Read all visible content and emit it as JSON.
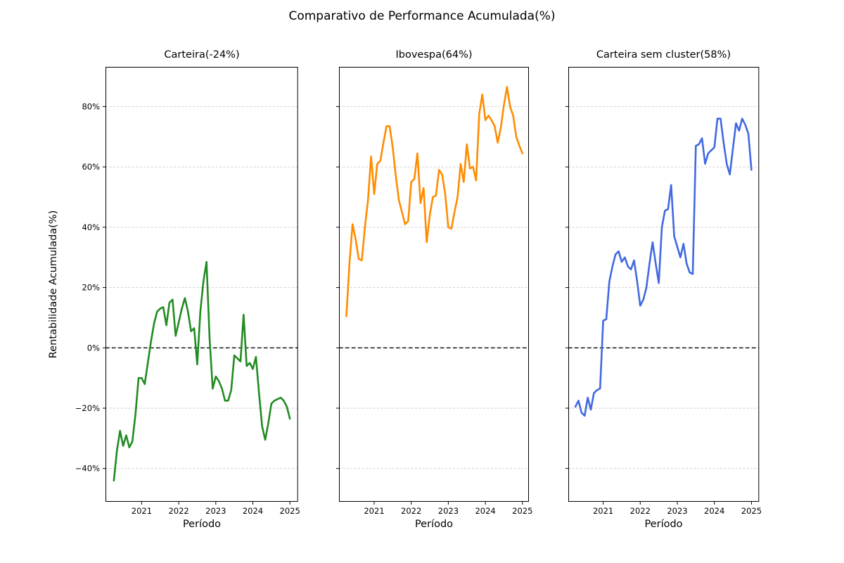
{
  "chart_data": {
    "type": "line",
    "suptitle": "Comparativo de Performance Acumulada(%)",
    "xlabel": "Período",
    "ylabel": "Rentabilidade Acumulada(%)",
    "grid": "horizontal-dashed",
    "zero_line": "black-dashed",
    "legend_position": "none",
    "ylim": [
      -51,
      93
    ],
    "x_tick_labels": [
      "2021",
      "2022",
      "2023",
      "2024",
      "2025"
    ],
    "y_tick_values": [
      -40,
      -20,
      0,
      20,
      40,
      60,
      80
    ],
    "y_tick_labels": [
      "−40%",
      "−20%",
      "0%",
      "20%",
      "40%",
      "60%",
      "80%"
    ],
    "x": [
      "2020-04",
      "2020-05",
      "2020-06",
      "2020-07",
      "2020-08",
      "2020-09",
      "2020-10",
      "2020-11",
      "2020-12",
      "2021-01",
      "2021-02",
      "2021-03",
      "2021-04",
      "2021-05",
      "2021-06",
      "2021-07",
      "2021-08",
      "2021-09",
      "2021-10",
      "2021-11",
      "2021-12",
      "2022-01",
      "2022-02",
      "2022-03",
      "2022-04",
      "2022-05",
      "2022-06",
      "2022-07",
      "2022-08",
      "2022-09",
      "2022-10",
      "2022-11",
      "2022-12",
      "2023-01",
      "2023-02",
      "2023-03",
      "2023-04",
      "2023-05",
      "2023-06",
      "2023-07",
      "2023-08",
      "2023-09",
      "2023-10",
      "2023-11",
      "2023-12",
      "2024-01",
      "2024-02",
      "2024-03",
      "2024-04",
      "2024-05",
      "2024-06",
      "2024-07",
      "2024-08",
      "2024-09",
      "2024-10",
      "2024-11",
      "2024-12",
      "2025-01"
    ],
    "subplots": [
      {
        "title": "Carteira(-24%)",
        "series_name": "Carteira",
        "final_value_pct": -24,
        "color": "#228B22",
        "values": [
          -44,
          -34,
          -27.5,
          -32.5,
          -29,
          -33,
          -31,
          -22,
          -10,
          -10,
          -12,
          -5,
          2,
          8,
          12,
          13,
          13.5,
          7.5,
          15,
          16,
          4,
          8.5,
          13,
          16.5,
          12,
          5.5,
          6.5,
          -5.5,
          12,
          22,
          28.5,
          3,
          -13.5,
          -9.5,
          -11,
          -13.5,
          -17.5,
          -17.5,
          -14,
          -2.5,
          -3.5,
          -4.5,
          11,
          -6,
          -5,
          -7,
          -3,
          -15,
          -26,
          -30.5,
          -25,
          -18.5,
          -17.5,
          -17,
          -16.5,
          -17.5,
          -19.5,
          -23.5
        ]
      },
      {
        "title": "Ibovespa(64%)",
        "series_name": "Ibovespa",
        "final_value_pct": 64,
        "color": "#FF8C00",
        "values": [
          10.5,
          28,
          41,
          36,
          29.5,
          29,
          40,
          49,
          63.5,
          51,
          61,
          62,
          68,
          73.5,
          73.5,
          66.5,
          57,
          49,
          45,
          41,
          42,
          55,
          56,
          64.5,
          48,
          53,
          35,
          44,
          50,
          50.5,
          59,
          57.5,
          51,
          40,
          39.5,
          45,
          50,
          61,
          55,
          67.5,
          59.5,
          60,
          55.5,
          77.5,
          84,
          75.5,
          77,
          75.5,
          73.5,
          68,
          73,
          80.5,
          86.5,
          80,
          77,
          70,
          67,
          64.5
        ]
      },
      {
        "title": "Carteira sem cluster(58%)",
        "series_name": "Carteira sem cluster",
        "final_value_pct": 58,
        "color": "#4169E1",
        "values": [
          -19.5,
          -17.5,
          -21.5,
          -22.5,
          -16.5,
          -20.5,
          -15,
          -14,
          -13.5,
          9,
          9.5,
          22,
          27,
          31,
          32,
          28.5,
          30,
          27,
          26,
          29,
          22,
          14,
          16,
          20,
          28,
          35,
          28,
          21.5,
          40,
          45.5,
          46,
          54,
          37,
          33.5,
          30,
          34.5,
          28,
          25,
          24.5,
          67,
          67.5,
          69.5,
          61,
          64.5,
          65.5,
          66.5,
          76,
          76,
          68,
          61,
          57.5,
          66,
          74.5,
          72,
          76,
          74,
          71,
          59
        ]
      }
    ]
  }
}
